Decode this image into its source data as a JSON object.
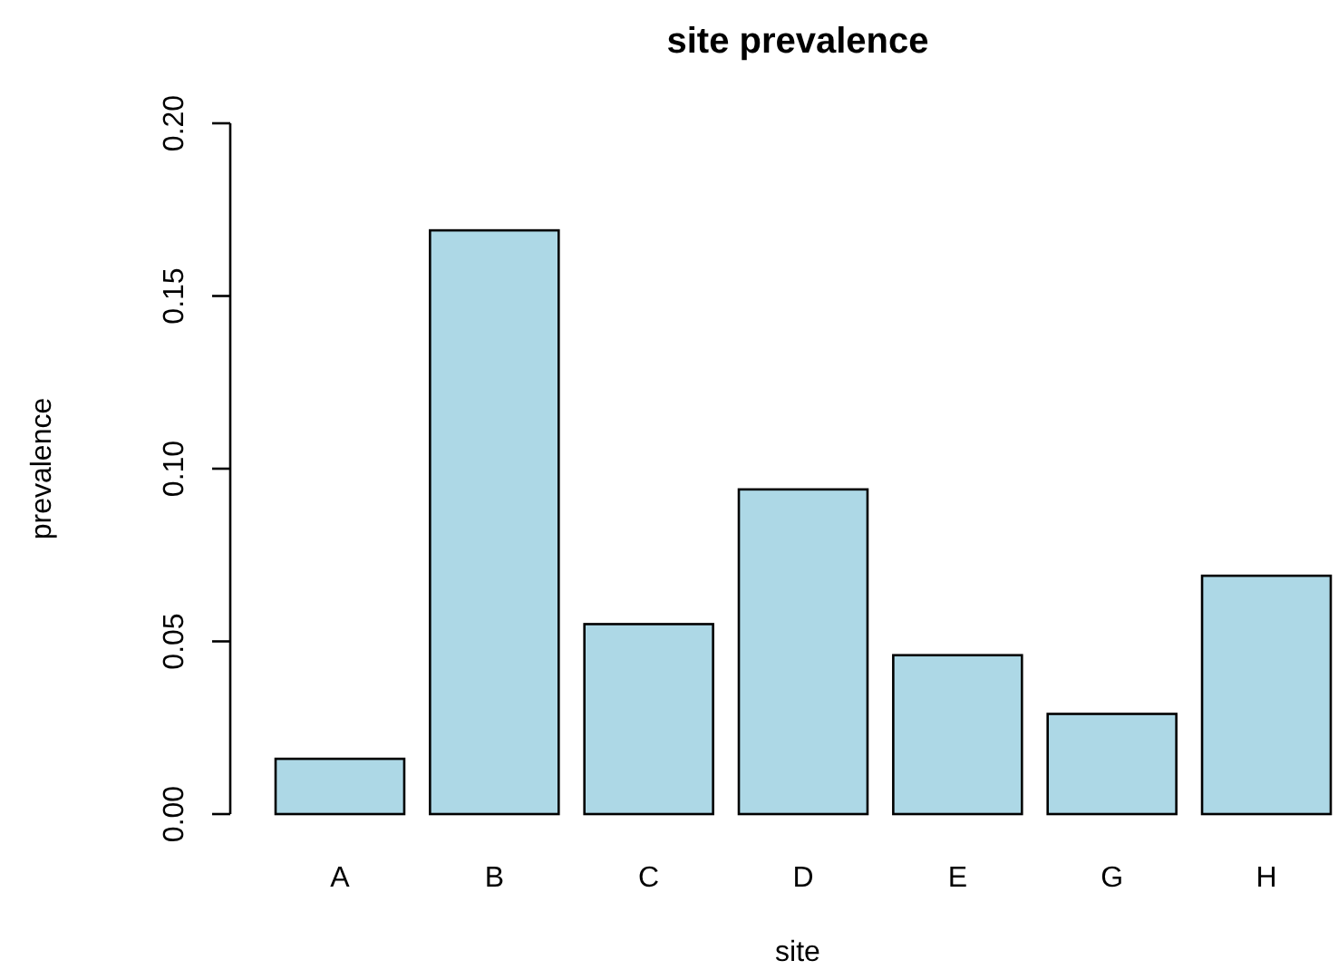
{
  "chart_data": {
    "type": "bar",
    "title": "site prevalence",
    "xlabel": "site",
    "ylabel": "prevalence",
    "categories": [
      "A",
      "B",
      "C",
      "D",
      "E",
      "G",
      "H"
    ],
    "values": [
      0.016,
      0.169,
      0.055,
      0.094,
      0.046,
      0.029,
      0.069
    ],
    "color": "#add8e6",
    "ylim": [
      0,
      0.2
    ],
    "yticks": [
      {
        "value": 0,
        "label": "0.00"
      },
      {
        "value": 0.05,
        "label": "0.05"
      },
      {
        "value": 0.1,
        "label": "0.10"
      },
      {
        "value": 0.15,
        "label": "0.15"
      },
      {
        "value": 0.2,
        "label": "0.20"
      }
    ],
    "grid": false
  }
}
